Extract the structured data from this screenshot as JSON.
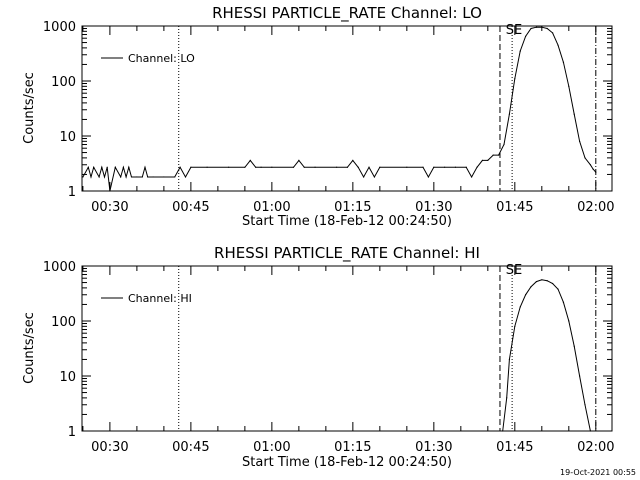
{
  "chart_data": [
    {
      "type": "line",
      "title": "RHESSI PARTICLE_RATE Channel: LO",
      "xlabel": "Start Time (18-Feb-12 00:24:50)",
      "ylabel": "Counts/sec",
      "yscale": "log",
      "ylim": [
        1,
        1000
      ],
      "xlim": [
        "00:24:50",
        "02:03:00"
      ],
      "x_ticks": [
        "00:30",
        "00:45",
        "01:00",
        "01:15",
        "01:30",
        "01:45",
        "02:00"
      ],
      "y_ticks": [
        "1",
        "10",
        "100",
        "1000"
      ],
      "legend": {
        "position": "top-left",
        "entries": [
          "Channel: LO"
        ]
      },
      "grid": false,
      "series": [
        {
          "name": "Channel: LO",
          "x": [
            "00:25:00",
            "00:26:00",
            "00:26:30",
            "00:27:00",
            "00:28:00",
            "00:28:30",
            "00:29:00",
            "00:29:30",
            "00:30:00",
            "00:31:00",
            "00:32:00",
            "00:32:30",
            "00:33:00",
            "00:33:30",
            "00:34:00",
            "00:35:00",
            "00:36:00",
            "00:36:30",
            "00:37:00",
            "00:38:00",
            "00:40:00",
            "00:42:00",
            "00:43:00",
            "00:44:00",
            "00:45:00",
            "00:48:00",
            "00:52:00",
            "00:55:00",
            "00:56:00",
            "00:57:00",
            "00:58:00",
            "01:00:00",
            "01:04:00",
            "01:05:00",
            "01:06:00",
            "01:08:00",
            "01:12:00",
            "01:14:00",
            "01:15:00",
            "01:16:00",
            "01:17:00",
            "01:18:00",
            "01:19:00",
            "01:20:00",
            "01:25:00",
            "01:28:00",
            "01:29:00",
            "01:30:00",
            "01:32:00",
            "01:34:00",
            "01:36:00",
            "01:37:00",
            "01:38:00",
            "01:39:00",
            "01:40:00",
            "01:41:00",
            "01:42:00",
            "01:43:00",
            "01:44:00",
            "01:45:00",
            "01:46:00",
            "01:47:00",
            "01:48:00",
            "01:49:00",
            "01:50:00",
            "01:51:00",
            "01:52:00",
            "01:53:00",
            "01:54:00",
            "01:55:00",
            "01:56:00",
            "01:57:00",
            "01:58:00",
            "01:59:00",
            "01:59:30",
            "02:00:00"
          ],
          "y": [
            1.8,
            2.7,
            1.8,
            2.7,
            1.8,
            2.7,
            1.8,
            2.7,
            1.0,
            2.7,
            1.8,
            2.7,
            1.8,
            2.7,
            1.8,
            1.8,
            1.8,
            2.7,
            1.8,
            1.8,
            1.8,
            1.8,
            2.7,
            1.8,
            2.7,
            2.7,
            2.7,
            2.7,
            3.6,
            2.7,
            2.7,
            2.7,
            2.7,
            3.6,
            2.7,
            2.7,
            2.7,
            2.7,
            3.6,
            2.7,
            1.8,
            2.7,
            1.8,
            2.7,
            2.7,
            2.7,
            1.8,
            2.7,
            2.7,
            2.7,
            2.7,
            1.8,
            2.7,
            3.6,
            3.6,
            4.5,
            4.5,
            7,
            25,
            110,
            350,
            650,
            900,
            950,
            950,
            900,
            750,
            450,
            220,
            80,
            25,
            8,
            4,
            3,
            2.5,
            2.2
          ]
        }
      ],
      "annotations": [
        {
          "type": "vline",
          "style": "dotted",
          "x": "00:42:45"
        },
        {
          "type": "vline",
          "style": "dashed",
          "x": "01:42:15"
        },
        {
          "type": "vline",
          "style": "dotted",
          "x": "01:44:30"
        },
        {
          "type": "vline",
          "style": "dashdot",
          "x": "02:00:00"
        },
        {
          "type": "text",
          "text": "SE",
          "x": "01:43:00"
        }
      ]
    },
    {
      "type": "line",
      "title": "RHESSI PARTICLE_RATE Channel: HI",
      "xlabel": "Start Time (18-Feb-12 00:24:50)",
      "ylabel": "Counts/sec",
      "yscale": "log",
      "ylim": [
        1,
        1000
      ],
      "xlim": [
        "00:24:50",
        "02:03:00"
      ],
      "x_ticks": [
        "00:30",
        "00:45",
        "01:00",
        "01:15",
        "01:30",
        "01:45",
        "02:00"
      ],
      "y_ticks": [
        "1",
        "10",
        "100",
        "1000"
      ],
      "legend": {
        "position": "top-left",
        "entries": [
          "Channel: HI"
        ]
      },
      "grid": false,
      "series": [
        {
          "name": "Channel: HI",
          "x": [
            "01:42:45",
            "01:43:30",
            "01:44:00",
            "01:45:00",
            "01:46:00",
            "01:47:00",
            "01:48:00",
            "01:49:00",
            "01:50:00",
            "01:51:00",
            "01:52:00",
            "01:53:00",
            "01:54:00",
            "01:55:00",
            "01:56:00",
            "01:57:00",
            "01:58:00",
            "01:59:00"
          ],
          "y": [
            1,
            4,
            20,
            80,
            180,
            300,
            420,
            520,
            560,
            540,
            480,
            380,
            220,
            100,
            35,
            10,
            3,
            1
          ]
        }
      ],
      "annotations": [
        {
          "type": "vline",
          "style": "dotted",
          "x": "00:42:45"
        },
        {
          "type": "vline",
          "style": "dashed",
          "x": "01:42:15"
        },
        {
          "type": "vline",
          "style": "dotted",
          "x": "01:44:30"
        },
        {
          "type": "vline",
          "style": "dashdot",
          "x": "02:00:00"
        },
        {
          "type": "text",
          "text": "SE",
          "x": "01:43:00"
        }
      ]
    }
  ],
  "timestamp": "19-Oct-2021 00:55"
}
